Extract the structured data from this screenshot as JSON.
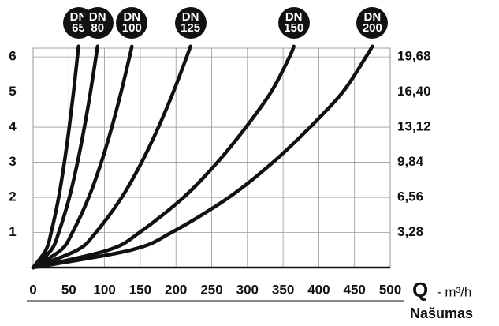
{
  "chart_data": {
    "type": "line",
    "xlabel_symbol": "Q",
    "xlabel_unit": "- m³/h",
    "xlabel": "Našumas",
    "xlim": [
      0,
      500
    ],
    "xticks": [
      0,
      50,
      100,
      150,
      200,
      250,
      300,
      350,
      400,
      450,
      500
    ],
    "ylim": [
      0,
      6.25
    ],
    "yticks": [
      1,
      2,
      3,
      4,
      5,
      6
    ],
    "y2lim": [
      0,
      20.5
    ],
    "y2ticks": [
      {
        "value": 3.28,
        "label": "3,28"
      },
      {
        "value": 6.56,
        "label": "6,56"
      },
      {
        "value": 9.84,
        "label": "9,84"
      },
      {
        "value": 13.12,
        "label": "13,12"
      },
      {
        "value": 16.4,
        "label": "16,40"
      },
      {
        "value": 19.68,
        "label": "19,68"
      }
    ],
    "grid": true,
    "series": [
      {
        "name": "DN 65",
        "color": "#111111",
        "x": [
          0,
          17.9,
          25.3,
          35.8,
          43.8,
          50.6,
          56.6,
          62,
          63.5
        ],
        "values": [
          0,
          0.5,
          1,
          2,
          3,
          4,
          5,
          6,
          6.3
        ]
      },
      {
        "name": "DN 80",
        "color": "#111111",
        "x": [
          0,
          25.4,
          35.9,
          50.8,
          62.2,
          71.8,
          80.3,
          88,
          90.2
        ],
        "values": [
          0,
          0.5,
          1,
          2,
          3,
          4,
          5,
          6,
          6.3
        ]
      },
      {
        "name": "DN 100",
        "color": "#111111",
        "x": [
          0,
          39.0,
          55.1,
          77.9,
          95.5,
          110.2,
          123.2,
          135,
          138.3
        ],
        "values": [
          0,
          0.5,
          1,
          2,
          3,
          4,
          5,
          6,
          6.3
        ]
      },
      {
        "name": "DN 125",
        "color": "#111111",
        "x": [
          0,
          62.1,
          87.8,
          124.1,
          152.0,
          175.5,
          196.3,
          215,
          220.3
        ],
        "values": [
          0,
          0.5,
          1,
          2,
          3,
          4,
          5,
          6,
          6.3
        ]
      },
      {
        "name": "DN 150",
        "color": "#111111",
        "x": [
          0,
          105.4,
          149.0,
          210.7,
          258.1,
          298.0,
          333.2,
          359,
          365
        ],
        "values": [
          0,
          0.5,
          1,
          2,
          3,
          4,
          5,
          6,
          6.3
        ]
      },
      {
        "name": "DN 200",
        "color": "#111111",
        "x": [
          0,
          137.1,
          193.9,
          274.2,
          335.9,
          387.8,
          433.6,
          466,
          475
        ],
        "values": [
          0,
          0.5,
          1,
          2,
          3,
          4,
          5,
          6,
          6.3
        ]
      }
    ]
  }
}
